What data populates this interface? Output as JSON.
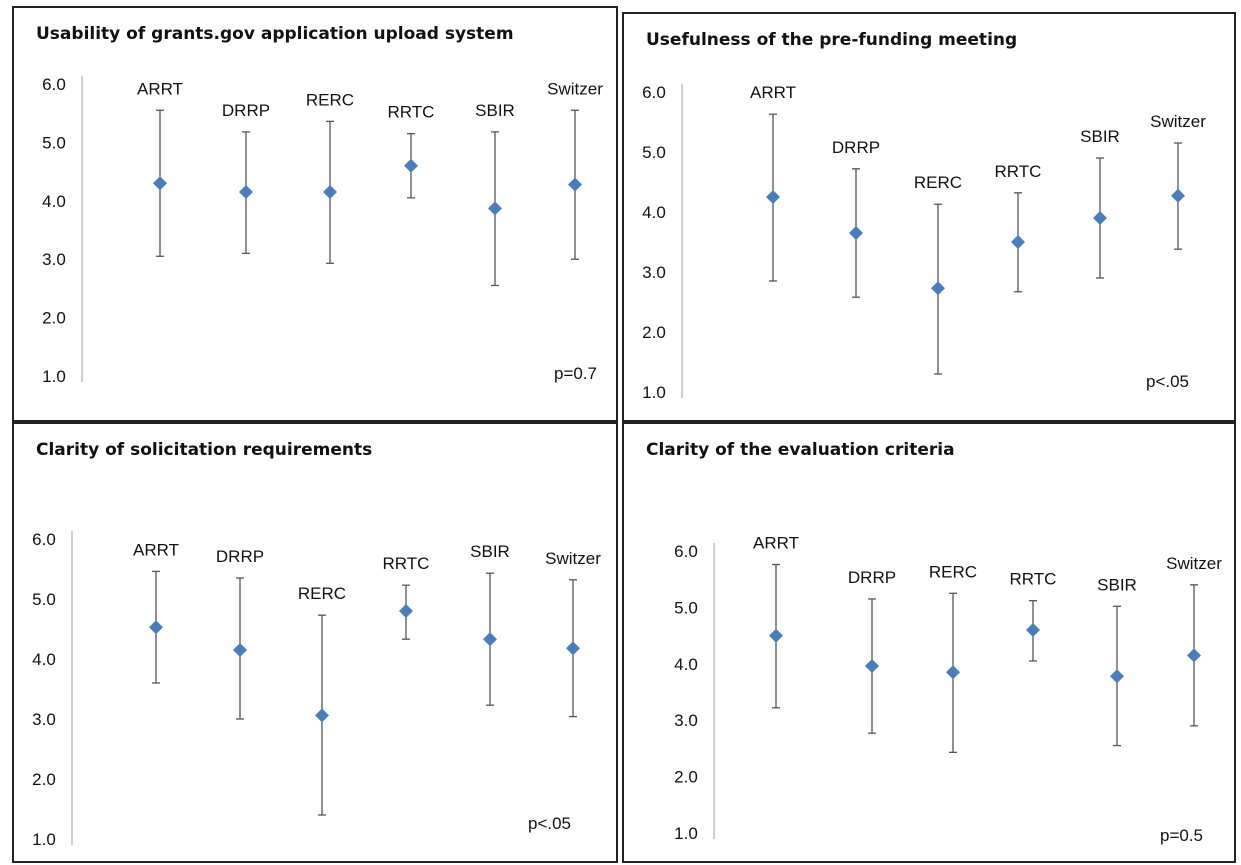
{
  "chart_data": [
    {
      "type": "scatter",
      "title": "Usability of grants.gov application upload system",
      "categories": [
        "ARRT",
        "DRRP",
        "RERC",
        "RRTC",
        "SBIR",
        "Switzer"
      ],
      "values": [
        4.3,
        4.15,
        4.15,
        4.6,
        3.87,
        4.28
      ],
      "error_low": [
        3.05,
        3.1,
        2.93,
        4.05,
        2.55,
        3.0
      ],
      "error_high": [
        5.55,
        5.18,
        5.36,
        5.15,
        5.18,
        5.55
      ],
      "yticks": [
        "1.0",
        "2.0",
        "3.0",
        "4.0",
        "5.0",
        "6.0"
      ],
      "ylim": [
        1.0,
        6.0
      ],
      "annotation": "p=0.7",
      "marker_color": "#4a7ebb"
    },
    {
      "type": "scatter",
      "title": "Usefulness of the pre-funding meeting",
      "categories": [
        "ARRT",
        "DRRP",
        "RERC",
        "RRTC",
        "SBIR",
        "Switzer"
      ],
      "values": [
        4.25,
        3.65,
        2.73,
        3.5,
        3.9,
        4.27
      ],
      "error_low": [
        2.85,
        2.58,
        1.3,
        2.67,
        2.9,
        3.38
      ],
      "error_high": [
        5.63,
        4.72,
        4.13,
        4.32,
        4.9,
        5.15
      ],
      "yticks": [
        "1.0",
        "2.0",
        "3.0",
        "4.0",
        "5.0",
        "6.0"
      ],
      "ylim": [
        1.0,
        6.0
      ],
      "annotation": "p<.05",
      "marker_color": "#4a7ebb"
    },
    {
      "type": "scatter",
      "title": "Clarity of solicitation requirements",
      "categories": [
        "ARRT",
        "DRRP",
        "RERC",
        "RRTC",
        "SBIR",
        "Switzer"
      ],
      "values": [
        4.53,
        4.15,
        3.06,
        4.8,
        4.33,
        4.18
      ],
      "error_low": [
        3.6,
        3.0,
        1.4,
        4.33,
        3.23,
        3.04
      ],
      "error_high": [
        5.46,
        5.35,
        4.73,
        5.23,
        5.43,
        5.32
      ],
      "yticks": [
        "1.0",
        "2.0",
        "3.0",
        "4.0",
        "5.0",
        "6.0"
      ],
      "ylim": [
        1.0,
        6.0
      ],
      "annotation": "p<.05",
      "marker_color": "#4a7ebb"
    },
    {
      "type": "scatter",
      "title": "Clarity of the evaluation criteria",
      "categories": [
        "ARRT",
        "DRRP",
        "RERC",
        "RRTC",
        "SBIR",
        "Switzer"
      ],
      "values": [
        4.5,
        3.96,
        3.85,
        4.6,
        3.78,
        4.15
      ],
      "error_low": [
        3.22,
        2.77,
        2.43,
        4.05,
        2.55,
        2.9
      ],
      "error_high": [
        5.76,
        5.15,
        5.25,
        5.12,
        5.02,
        5.4
      ],
      "yticks": [
        "1.0",
        "2.0",
        "3.0",
        "4.0",
        "5.0",
        "6.0"
      ],
      "ylim": [
        1.0,
        6.0
      ],
      "annotation": "p=0.5",
      "marker_color": "#4a7ebb"
    }
  ]
}
